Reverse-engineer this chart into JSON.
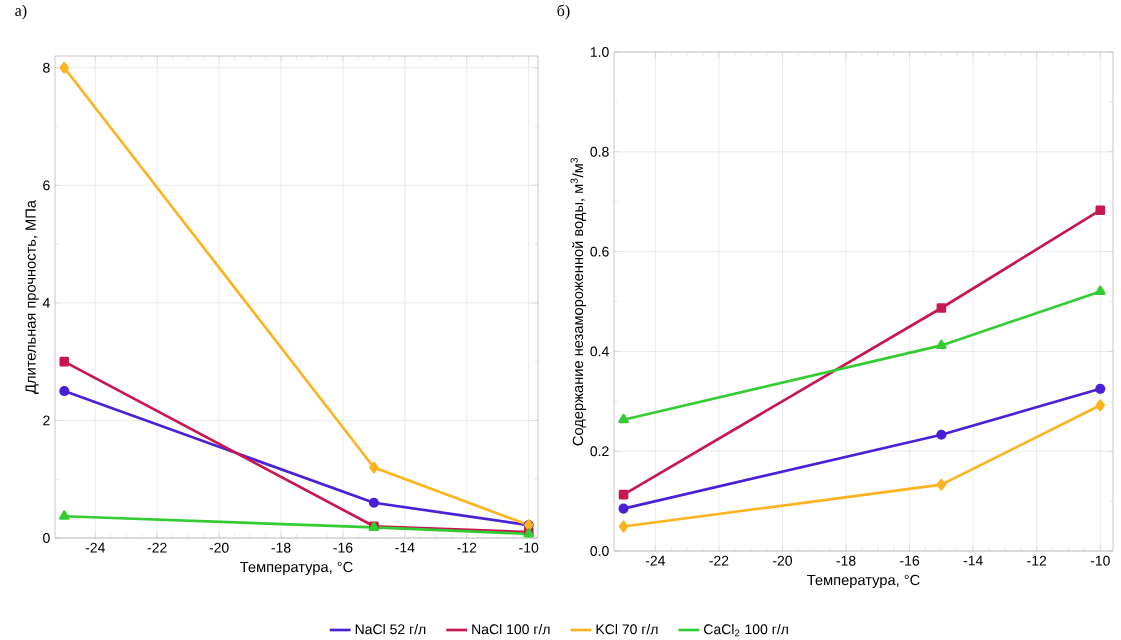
{
  "chart_data": [
    {
      "type": "line",
      "title": "а)",
      "xlabel": "Температура, °C",
      "ylabel": "Длительная прочность, МПа",
      "x": [
        -25,
        -15,
        -10
      ],
      "xlim": [
        -25.3,
        -9.7
      ],
      "ylim": [
        0,
        8.2
      ],
      "xticks": [
        -24,
        -22,
        -20,
        -18,
        -16,
        -14,
        -12,
        -10
      ],
      "yticks": [
        0,
        2,
        4,
        6,
        8
      ],
      "grid": true,
      "legend": "bottom",
      "series": [
        {
          "name": "NaCl 52 г/л",
          "color": "#4b1fd6",
          "marker": "circle",
          "values": [
            2.5,
            0.6,
            0.22
          ]
        },
        {
          "name": "NaCl 100 г/л",
          "color": "#c8174f",
          "marker": "square",
          "values": [
            3.0,
            0.2,
            0.1
          ]
        },
        {
          "name": "KCl 70 г/л",
          "color": "#fdb31e",
          "marker": "diamond",
          "values": [
            8.0,
            1.2,
            0.22
          ]
        },
        {
          "name": "CaCl$_{2}$ 100 г/л",
          "color": "#33cc33",
          "marker": "triangle",
          "values": [
            0.37,
            0.18,
            0.07
          ]
        }
      ]
    },
    {
      "type": "line",
      "title": "б)",
      "xlabel": "Температура, °C",
      "ylabel": "Содержание незамороженной воды, м$^{3}$/м$^{3}$",
      "x": [
        -25,
        -15,
        -10
      ],
      "xlim": [
        -25.3,
        -9.6
      ],
      "ylim": [
        0,
        1.0
      ],
      "xticks": [
        -24,
        -22,
        -20,
        -18,
        -16,
        -14,
        -12,
        -10
      ],
      "yticks": [
        {
          "value": 0,
          "label": "0.0"
        },
        0.2,
        0.4,
        0.6,
        0.8,
        {
          "value": 1.0,
          "label": "1.0"
        }
      ],
      "grid": true,
      "series": [
        {
          "color": "#4b1fd6",
          "marker": "circle",
          "values": [
            0.085,
            0.233,
            0.325
          ]
        },
        {
          "color": "#c8174f",
          "marker": "square",
          "values": [
            0.113,
            0.487,
            0.683
          ]
        },
        {
          "color": "#fdb31e",
          "marker": "diamond",
          "values": [
            0.049,
            0.133,
            0.292
          ]
        },
        {
          "color": "#33cc33",
          "marker": "triangle",
          "values": [
            0.263,
            0.412,
            0.52
          ]
        }
      ]
    }
  ]
}
